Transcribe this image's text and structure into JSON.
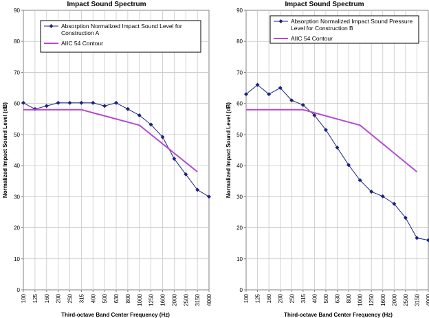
{
  "chart_data": [
    {
      "type": "line",
      "title": "Impact Sound Spectrum",
      "xlabel": "Third-octave Band Center Frequency (Hz)",
      "ylabel": "Normalized Impact Sound Level (dB)",
      "ylim": [
        0,
        90
      ],
      "ytick_step": 10,
      "grid": true,
      "legend_position": "top-left",
      "categories": [
        "100",
        "125",
        "160",
        "200",
        "250",
        "315",
        "400",
        "500",
        "630",
        "800",
        "1000",
        "1250",
        "1600",
        "2000",
        "2500",
        "3150",
        "4000"
      ],
      "series": [
        {
          "name": "Absorption Normalized Impact Sound Level for Construction A",
          "legend_lines": [
            "Absorption Normalized Impact Sound Level for",
            "Construction A"
          ],
          "color": "#1a237e",
          "marker": "diamond",
          "values": [
            60.2,
            58.2,
            59.2,
            60.2,
            60.2,
            60.2,
            60.2,
            59.2,
            60.2,
            58.2,
            56.2,
            53.2,
            49.2,
            42.2,
            37.2,
            32.2,
            30.0
          ]
        },
        {
          "name": "AIIC 54 Contour",
          "legend_lines": [
            "AIIC 54 Contour"
          ],
          "color": "#b44ad2",
          "marker": "none",
          "values": [
            58,
            58,
            58,
            58,
            58,
            58,
            57,
            56,
            55,
            54,
            53,
            50,
            47,
            44,
            41,
            38,
            null
          ]
        }
      ]
    },
    {
      "type": "line",
      "title": "Impact Sound Spectrum",
      "xlabel": "Third-octave Band Center Frequency (Hz)",
      "ylabel": "Normalized Impact Sound Level (dB)",
      "ylim": [
        0,
        90
      ],
      "ytick_step": 10,
      "grid": true,
      "legend_position": "top-right",
      "categories": [
        "100",
        "125",
        "160",
        "200",
        "250",
        "315",
        "400",
        "500",
        "630",
        "800",
        "1000",
        "1250",
        "1600",
        "2000",
        "2500",
        "3150",
        "4000"
      ],
      "series": [
        {
          "name": "Absorption Normalized Impact Sound Pressure Level for Construction B",
          "legend_lines": [
            "Absorption Normalized Impact Sound Pressure",
            "Level for Construction B"
          ],
          "color": "#1a237e",
          "marker": "diamond",
          "values": [
            63,
            66,
            63,
            65,
            61,
            59.5,
            56.2,
            51.5,
            45.8,
            40.2,
            35.3,
            31.6,
            30.1,
            27.7,
            23.2,
            16.7,
            16.0
          ]
        },
        {
          "name": "AIIC 54 Contour",
          "legend_lines": [
            "AIIC 54 Contour"
          ],
          "color": "#b44ad2",
          "marker": "none",
          "values": [
            58,
            58,
            58,
            58,
            58,
            58,
            57,
            56,
            55,
            54,
            53,
            50,
            47,
            44,
            41,
            38,
            null
          ]
        }
      ]
    }
  ]
}
